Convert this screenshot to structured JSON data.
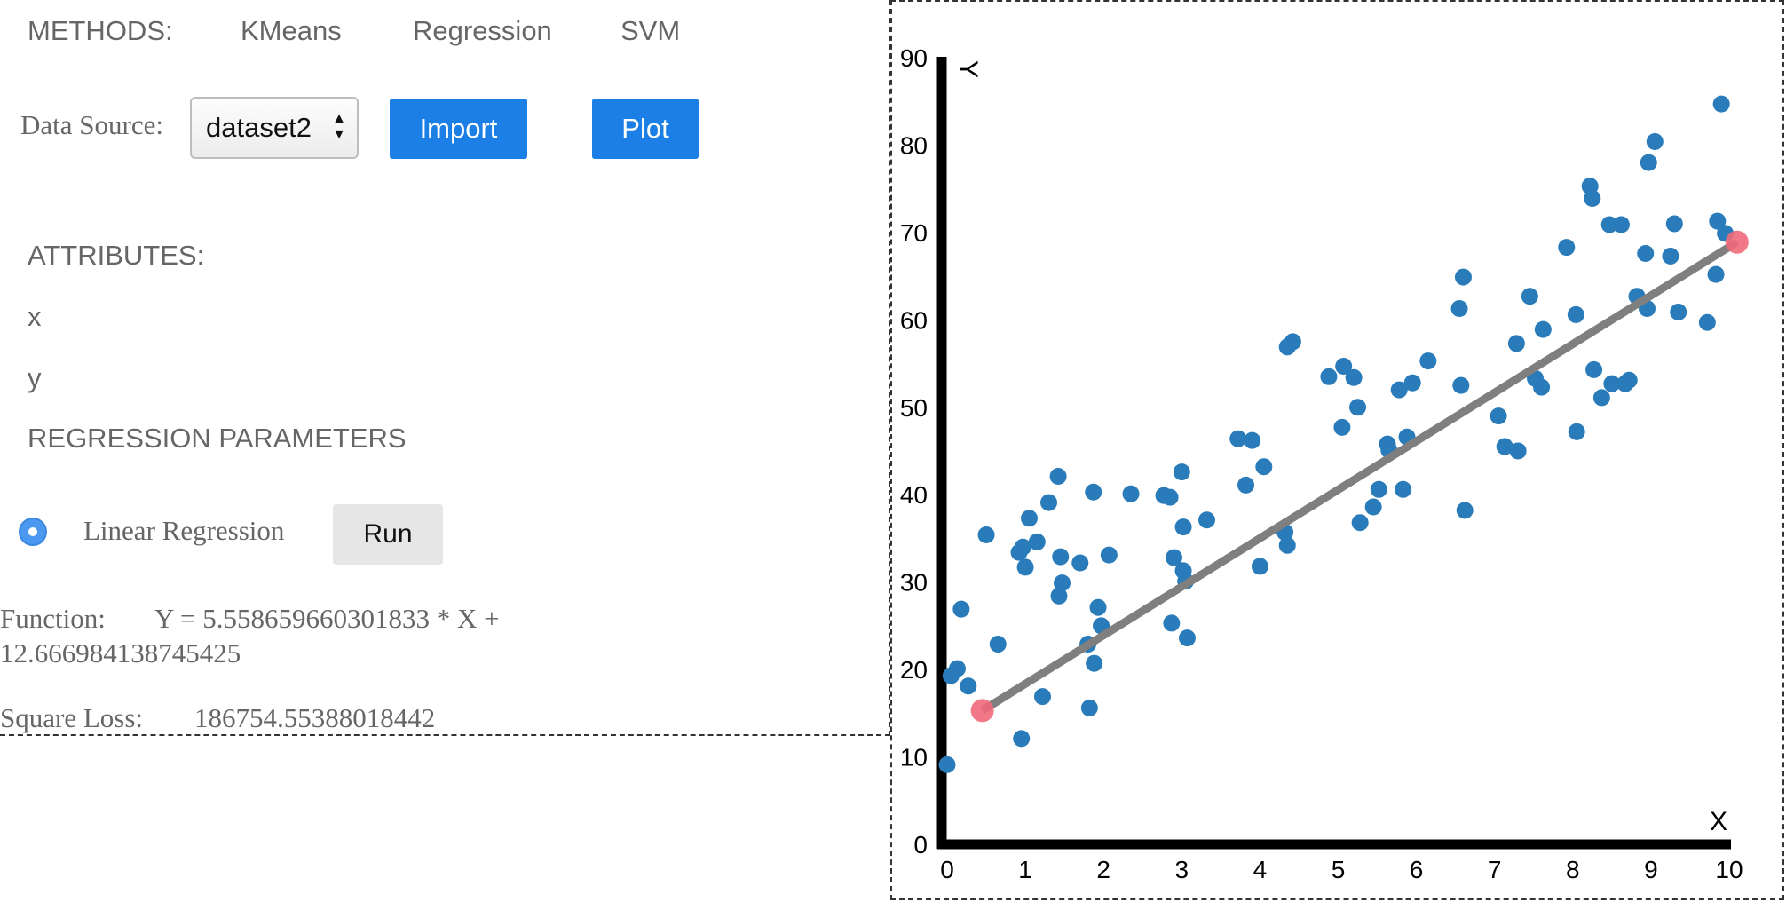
{
  "menu": {
    "label": "METHODS:",
    "items": [
      "KMeans",
      "Regression",
      "SVM"
    ]
  },
  "data_source": {
    "label": "Data Source:",
    "selected": "dataset2"
  },
  "buttons": {
    "import": "Import",
    "plot": "Plot",
    "run": "Run"
  },
  "attributes": {
    "heading": "ATTRIBUTES:",
    "items": [
      "x",
      "y"
    ]
  },
  "regression": {
    "heading": "REGRESSION PARAMETERS",
    "method_label": "Linear Regression",
    "function_label": "Function:",
    "function_line1": "Y = 5.558659660301833 * X +",
    "function_line2": "12.666984138745425",
    "loss_label": "Square Loss:",
    "loss_value": "186754.55388018442"
  },
  "colors": {
    "accent": "#1c7fe6",
    "point": "#2a7bb9",
    "line": "#7f7f7f",
    "endpoint": "#f06a7a"
  },
  "chart_data": {
    "type": "scatter",
    "xlabel": "X",
    "ylabel": "Y",
    "xlim": [
      0,
      10
    ],
    "ylim": [
      0,
      90
    ],
    "xticks": [
      0,
      1,
      2,
      3,
      4,
      5,
      6,
      7,
      8,
      9,
      10
    ],
    "yticks": [
      0,
      10,
      20,
      30,
      40,
      50,
      60,
      70,
      80,
      90
    ],
    "points": [
      [
        0.0,
        9.0
      ],
      [
        0.05,
        19.2
      ],
      [
        0.13,
        20.0
      ],
      [
        0.18,
        26.8
      ],
      [
        0.27,
        18.0
      ],
      [
        0.5,
        35.3
      ],
      [
        0.65,
        22.8
      ],
      [
        0.92,
        33.3
      ],
      [
        0.95,
        12.0
      ],
      [
        0.97,
        33.9
      ],
      [
        1.0,
        31.6
      ],
      [
        1.05,
        37.2
      ],
      [
        1.15,
        34.5
      ],
      [
        1.22,
        16.8
      ],
      [
        1.3,
        39.0
      ],
      [
        1.42,
        42.0
      ],
      [
        1.43,
        28.3
      ],
      [
        1.45,
        32.8
      ],
      [
        1.47,
        29.8
      ],
      [
        1.7,
        32.1
      ],
      [
        1.8,
        22.8
      ],
      [
        1.82,
        15.5
      ],
      [
        1.87,
        40.2
      ],
      [
        1.88,
        20.6
      ],
      [
        1.93,
        27.0
      ],
      [
        1.97,
        24.9
      ],
      [
        2.07,
        33.0
      ],
      [
        2.35,
        40.0
      ],
      [
        2.77,
        39.8
      ],
      [
        2.85,
        39.6
      ],
      [
        2.87,
        25.2
      ],
      [
        2.9,
        32.7
      ],
      [
        3.0,
        42.5
      ],
      [
        3.02,
        36.2
      ],
      [
        3.02,
        31.2
      ],
      [
        3.05,
        30.0
      ],
      [
        3.07,
        23.5
      ],
      [
        3.32,
        37.0
      ],
      [
        3.72,
        46.3
      ],
      [
        3.82,
        41.0
      ],
      [
        3.9,
        46.1
      ],
      [
        4.0,
        31.7
      ],
      [
        4.05,
        43.1
      ],
      [
        4.32,
        35.6
      ],
      [
        4.35,
        34.1
      ],
      [
        4.35,
        56.8
      ],
      [
        4.42,
        57.4
      ],
      [
        4.88,
        53.4
      ],
      [
        5.05,
        47.6
      ],
      [
        5.07,
        54.6
      ],
      [
        5.2,
        53.3
      ],
      [
        5.25,
        49.9
      ],
      [
        5.28,
        36.7
      ],
      [
        5.45,
        38.5
      ],
      [
        5.52,
        40.5
      ],
      [
        5.63,
        45.7
      ],
      [
        5.65,
        45.0
      ],
      [
        5.78,
        51.9
      ],
      [
        5.83,
        40.5
      ],
      [
        5.88,
        46.5
      ],
      [
        5.95,
        52.7
      ],
      [
        6.15,
        55.2
      ],
      [
        6.55,
        61.2
      ],
      [
        6.57,
        52.4
      ],
      [
        6.6,
        64.8
      ],
      [
        6.62,
        38.1
      ],
      [
        7.05,
        48.9
      ],
      [
        7.13,
        45.4
      ],
      [
        7.28,
        57.2
      ],
      [
        7.3,
        44.9
      ],
      [
        7.45,
        62.6
      ],
      [
        7.52,
        53.2
      ],
      [
        7.6,
        52.2
      ],
      [
        7.62,
        58.8
      ],
      [
        7.92,
        68.2
      ],
      [
        8.04,
        60.5
      ],
      [
        8.05,
        47.1
      ],
      [
        8.22,
        75.2
      ],
      [
        8.25,
        73.8
      ],
      [
        8.27,
        54.2
      ],
      [
        8.37,
        51.0
      ],
      [
        8.47,
        70.8
      ],
      [
        8.5,
        52.6
      ],
      [
        8.62,
        70.8
      ],
      [
        8.67,
        52.6
      ],
      [
        8.72,
        53.0
      ],
      [
        8.82,
        62.6
      ],
      [
        8.93,
        67.5
      ],
      [
        8.95,
        61.2
      ],
      [
        8.97,
        77.9
      ],
      [
        9.05,
        80.3
      ],
      [
        9.25,
        67.2
      ],
      [
        9.3,
        70.9
      ],
      [
        9.35,
        60.8
      ],
      [
        9.72,
        59.6
      ],
      [
        9.83,
        65.1
      ],
      [
        9.85,
        71.2
      ],
      [
        9.9,
        84.6
      ],
      [
        9.95,
        69.8
      ]
    ],
    "regression_line": {
      "x_start": 0.45,
      "y_start": 15.2,
      "x_end": 10.1,
      "y_end": 68.8
    }
  }
}
